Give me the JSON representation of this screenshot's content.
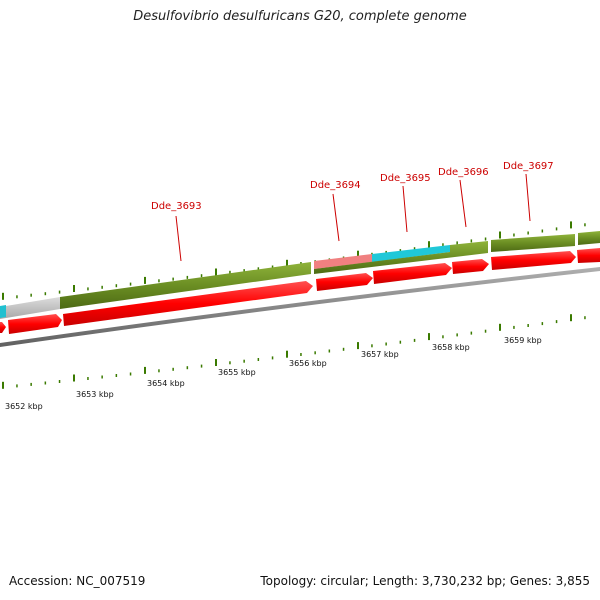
{
  "title": "Desulfovibrio desulfuricans G20, complete genome",
  "footer": {
    "accession": "Accession: NC_007519",
    "summary": "Topology: circular; Length: 3,730,232 bp; Genes: 3,855"
  },
  "colors": {
    "background": "#ffffff",
    "gene_label": "#cc0000",
    "tick": "#3a7a00",
    "forward_strand_green": "#6b8e23",
    "gene_red": "#ff0000",
    "pink": "#f08080",
    "cyan": "#20c0d0",
    "grey": "#c8c8c8",
    "backbone": "#808080"
  },
  "gene_labels": [
    "Dde_3693",
    "Dde_3694",
    "Dde_3695",
    "Dde_3696",
    "Dde_3697"
  ],
  "kbp_labels": [
    "3652 kbp",
    "3653 kbp",
    "3654 kbp",
    "3655 kbp",
    "3656 kbp",
    "3657 kbp",
    "3658 kbp",
    "3659 kbp"
  ]
}
